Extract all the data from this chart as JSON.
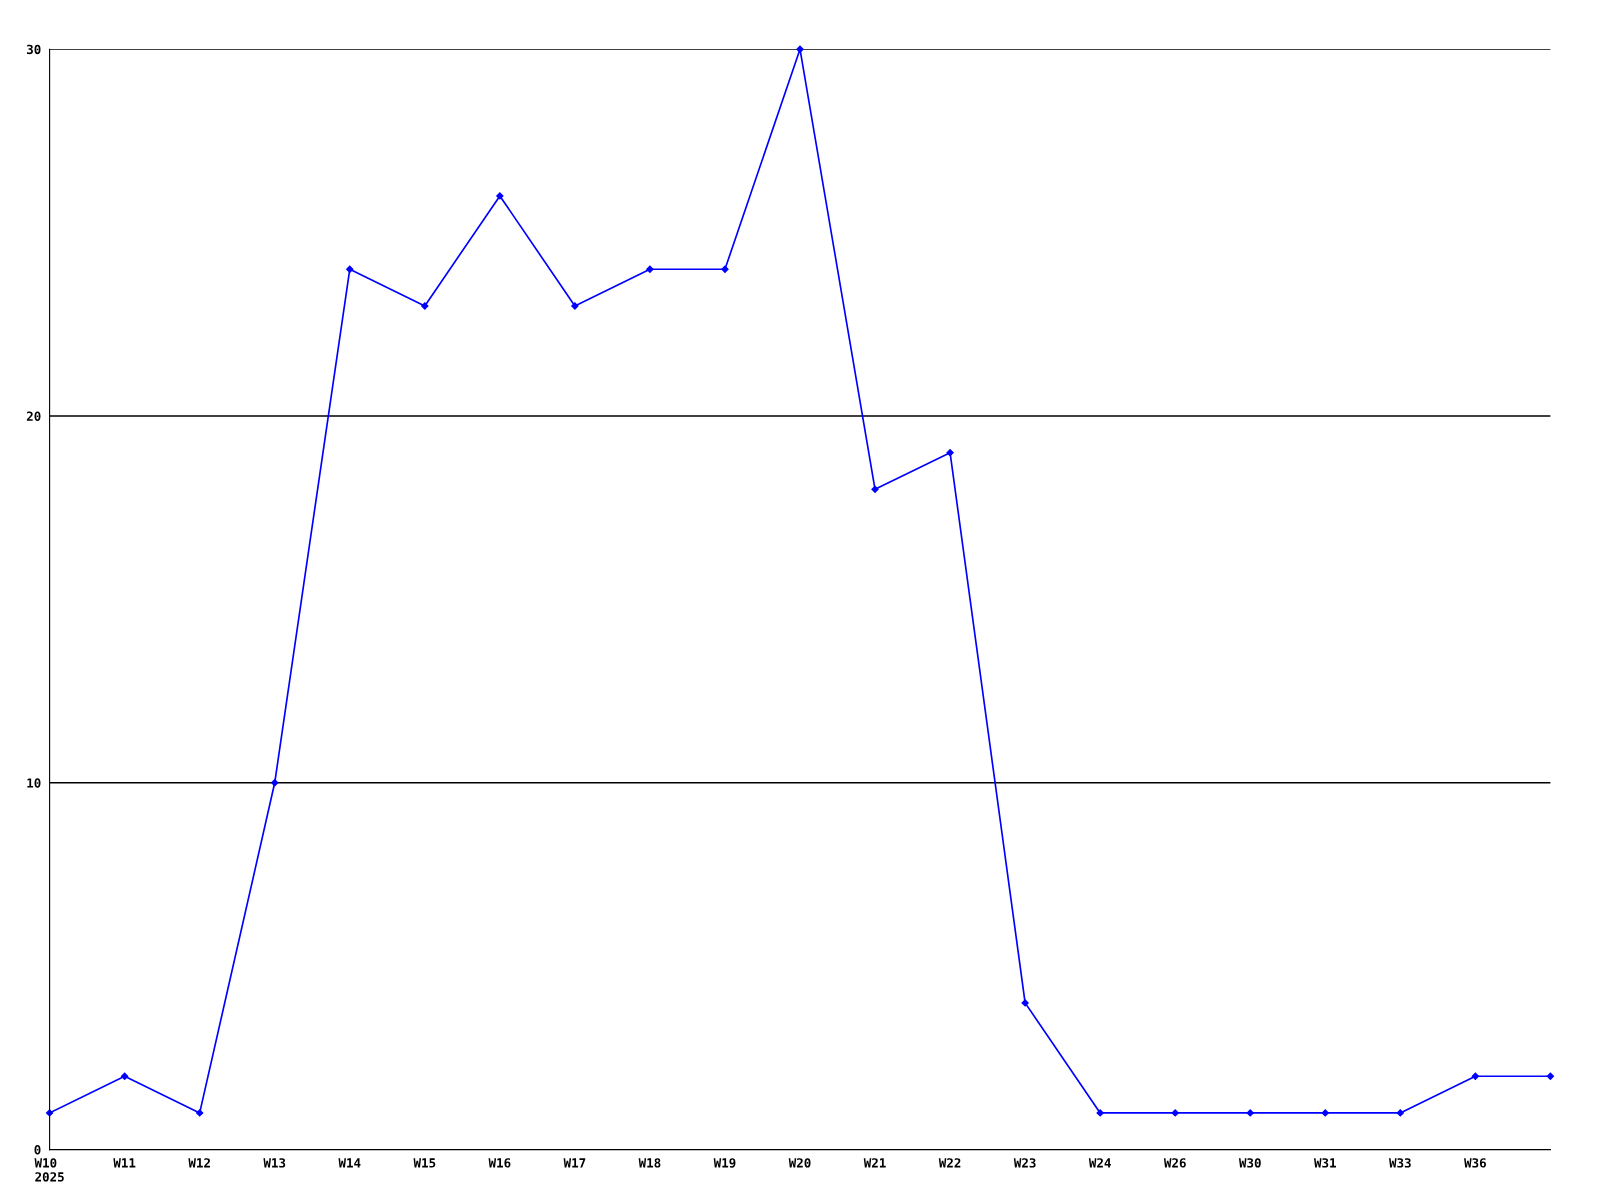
{
  "chart_data": {
    "type": "line",
    "categories": [
      "W10\n2025",
      "W11",
      "W12",
      "W13",
      "W14",
      "W15",
      "W16",
      "W17",
      "W18",
      "W19",
      "W20",
      "W21",
      "W22",
      "W23",
      "W24",
      "W26",
      "W30",
      "W31",
      "W33",
      "W36",
      null
    ],
    "series": [
      {
        "color": "#0000ff",
        "values": [
          1,
          2,
          1,
          10,
          24,
          23,
          26,
          23,
          24,
          24,
          30,
          18,
          19,
          4,
          1,
          1,
          1,
          1,
          1,
          2,
          2
        ]
      }
    ],
    "ylim": [
      0,
      30
    ],
    "yticks": [
      0,
      10,
      20,
      30
    ],
    "grid": "y",
    "marker": "diamond",
    "line_style": "solid"
  }
}
